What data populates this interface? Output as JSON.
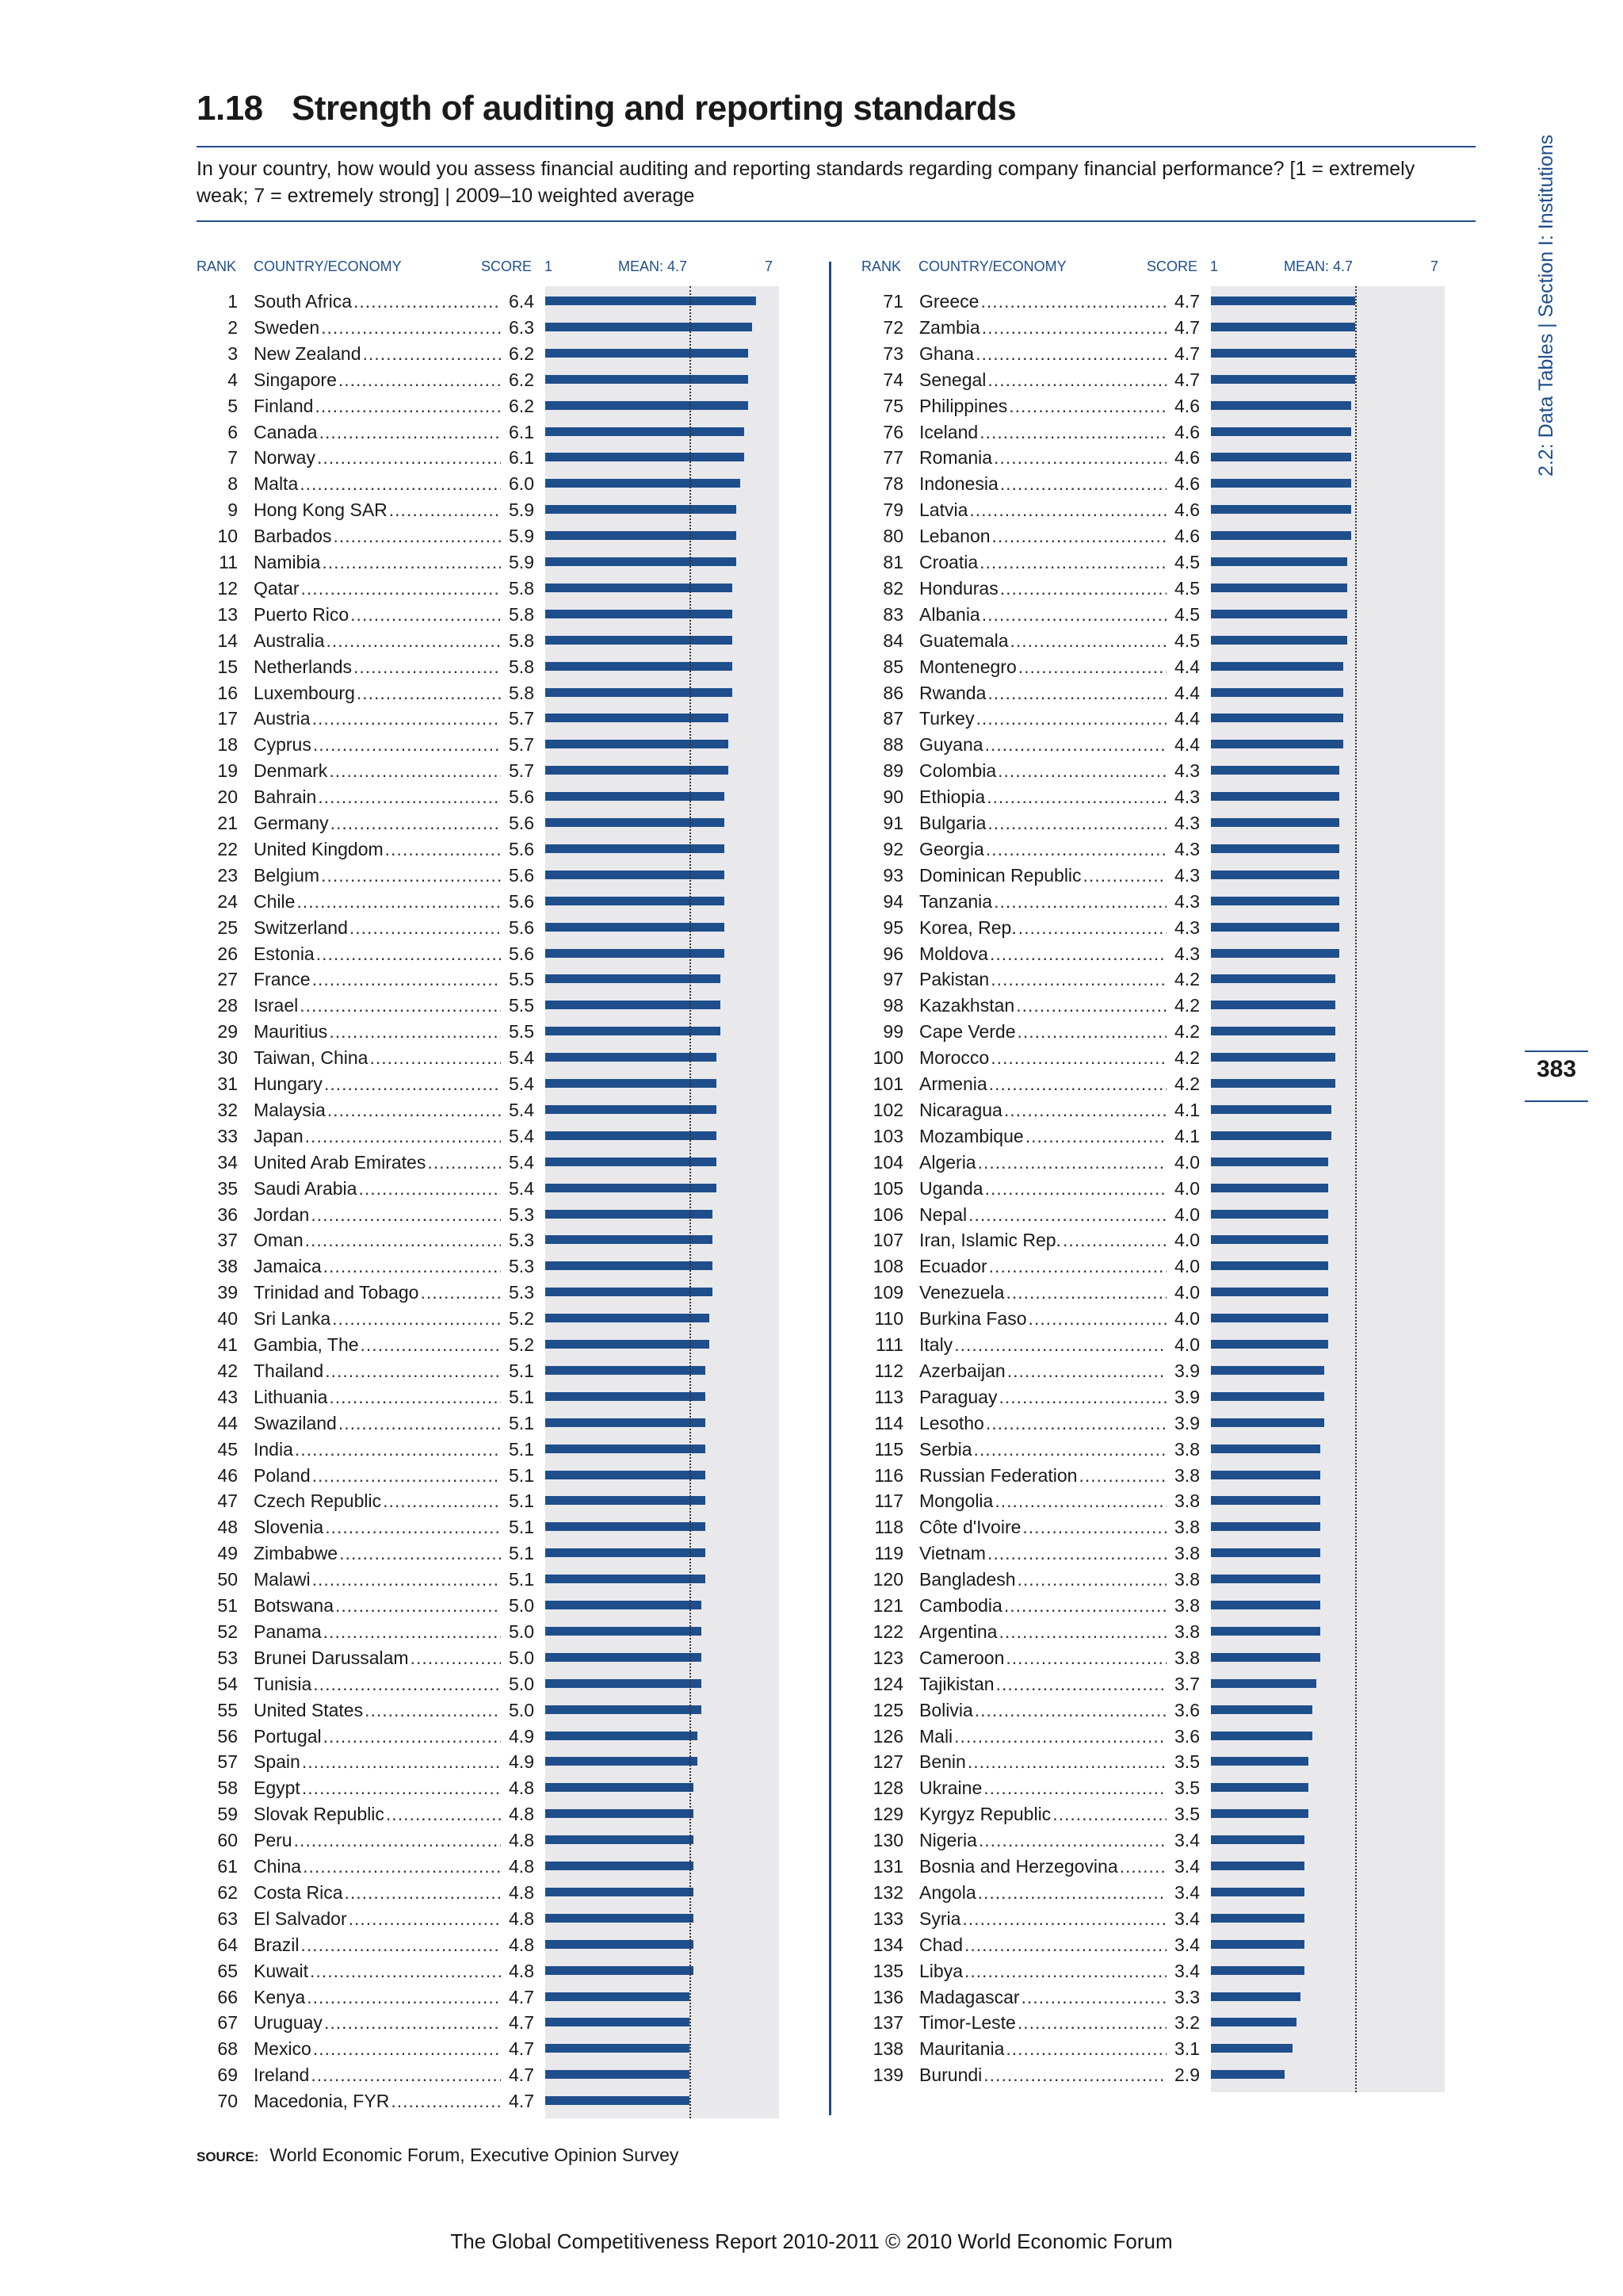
{
  "header": {
    "number": "1.18",
    "title": "Strength of auditing and reporting standards",
    "question": "In your country, how would you assess financial auditing and reporting standards regarding company financial performance? [1 = extremely weak; 7 = extremely strong] | 2009–10 weighted average"
  },
  "sidebar": {
    "section": "2.2: Data Tables | Section I: Institutions",
    "page_number": "383"
  },
  "columns": {
    "rank": "RANK",
    "country": "COUNTRY/ECONOMY",
    "score": "SCORE",
    "axis_min": "1",
    "mean": "MEAN: 4.7",
    "axis_max": "7"
  },
  "source": {
    "label": "SOURCE:",
    "text": "World Economic Forum, Executive Opinion Survey"
  },
  "footer": "The Global Competitiveness Report 2010-2011 © 2010 World Economic Forum",
  "chart_data": {
    "type": "bar",
    "orientation": "horizontal",
    "xlim": [
      1,
      7
    ],
    "mean": 4.7,
    "colors": {
      "bar": "#1f4e8c",
      "track": "#e9e9ec"
    },
    "rows": [
      {
        "rank": 1,
        "country": "South Africa",
        "score": 6.4
      },
      {
        "rank": 2,
        "country": "Sweden",
        "score": 6.3
      },
      {
        "rank": 3,
        "country": "New Zealand",
        "score": 6.2
      },
      {
        "rank": 4,
        "country": "Singapore",
        "score": 6.2
      },
      {
        "rank": 5,
        "country": "Finland",
        "score": 6.2
      },
      {
        "rank": 6,
        "country": "Canada",
        "score": 6.1
      },
      {
        "rank": 7,
        "country": "Norway",
        "score": 6.1
      },
      {
        "rank": 8,
        "country": "Malta",
        "score": 6.0
      },
      {
        "rank": 9,
        "country": "Hong Kong SAR",
        "score": 5.9
      },
      {
        "rank": 10,
        "country": "Barbados",
        "score": 5.9
      },
      {
        "rank": 11,
        "country": "Namibia",
        "score": 5.9
      },
      {
        "rank": 12,
        "country": "Qatar",
        "score": 5.8
      },
      {
        "rank": 13,
        "country": "Puerto Rico",
        "score": 5.8
      },
      {
        "rank": 14,
        "country": "Australia",
        "score": 5.8
      },
      {
        "rank": 15,
        "country": "Netherlands",
        "score": 5.8
      },
      {
        "rank": 16,
        "country": "Luxembourg",
        "score": 5.8
      },
      {
        "rank": 17,
        "country": "Austria",
        "score": 5.7
      },
      {
        "rank": 18,
        "country": "Cyprus",
        "score": 5.7
      },
      {
        "rank": 19,
        "country": "Denmark",
        "score": 5.7
      },
      {
        "rank": 20,
        "country": "Bahrain",
        "score": 5.6
      },
      {
        "rank": 21,
        "country": "Germany",
        "score": 5.6
      },
      {
        "rank": 22,
        "country": "United Kingdom",
        "score": 5.6
      },
      {
        "rank": 23,
        "country": "Belgium",
        "score": 5.6
      },
      {
        "rank": 24,
        "country": "Chile",
        "score": 5.6
      },
      {
        "rank": 25,
        "country": "Switzerland",
        "score": 5.6
      },
      {
        "rank": 26,
        "country": "Estonia",
        "score": 5.6
      },
      {
        "rank": 27,
        "country": "France",
        "score": 5.5
      },
      {
        "rank": 28,
        "country": "Israel",
        "score": 5.5
      },
      {
        "rank": 29,
        "country": "Mauritius",
        "score": 5.5
      },
      {
        "rank": 30,
        "country": "Taiwan, China",
        "score": 5.4
      },
      {
        "rank": 31,
        "country": "Hungary",
        "score": 5.4
      },
      {
        "rank": 32,
        "country": "Malaysia",
        "score": 5.4
      },
      {
        "rank": 33,
        "country": "Japan",
        "score": 5.4
      },
      {
        "rank": 34,
        "country": "United Arab Emirates",
        "score": 5.4
      },
      {
        "rank": 35,
        "country": "Saudi Arabia",
        "score": 5.4
      },
      {
        "rank": 36,
        "country": "Jordan",
        "score": 5.3
      },
      {
        "rank": 37,
        "country": "Oman",
        "score": 5.3
      },
      {
        "rank": 38,
        "country": "Jamaica",
        "score": 5.3
      },
      {
        "rank": 39,
        "country": "Trinidad and Tobago",
        "score": 5.3
      },
      {
        "rank": 40,
        "country": "Sri Lanka",
        "score": 5.2
      },
      {
        "rank": 41,
        "country": "Gambia, The",
        "score": 5.2
      },
      {
        "rank": 42,
        "country": "Thailand",
        "score": 5.1
      },
      {
        "rank": 43,
        "country": "Lithuania",
        "score": 5.1
      },
      {
        "rank": 44,
        "country": "Swaziland",
        "score": 5.1
      },
      {
        "rank": 45,
        "country": "India",
        "score": 5.1
      },
      {
        "rank": 46,
        "country": "Poland",
        "score": 5.1
      },
      {
        "rank": 47,
        "country": "Czech Republic",
        "score": 5.1
      },
      {
        "rank": 48,
        "country": "Slovenia",
        "score": 5.1
      },
      {
        "rank": 49,
        "country": "Zimbabwe",
        "score": 5.1
      },
      {
        "rank": 50,
        "country": "Malawi",
        "score": 5.1
      },
      {
        "rank": 51,
        "country": "Botswana",
        "score": 5.0
      },
      {
        "rank": 52,
        "country": "Panama",
        "score": 5.0
      },
      {
        "rank": 53,
        "country": "Brunei Darussalam",
        "score": 5.0
      },
      {
        "rank": 54,
        "country": "Tunisia",
        "score": 5.0
      },
      {
        "rank": 55,
        "country": "United States",
        "score": 5.0
      },
      {
        "rank": 56,
        "country": "Portugal",
        "score": 4.9
      },
      {
        "rank": 57,
        "country": "Spain",
        "score": 4.9
      },
      {
        "rank": 58,
        "country": "Egypt",
        "score": 4.8
      },
      {
        "rank": 59,
        "country": "Slovak Republic",
        "score": 4.8
      },
      {
        "rank": 60,
        "country": "Peru",
        "score": 4.8
      },
      {
        "rank": 61,
        "country": "China",
        "score": 4.8
      },
      {
        "rank": 62,
        "country": "Costa Rica",
        "score": 4.8
      },
      {
        "rank": 63,
        "country": "El Salvador",
        "score": 4.8
      },
      {
        "rank": 64,
        "country": "Brazil",
        "score": 4.8
      },
      {
        "rank": 65,
        "country": "Kuwait",
        "score": 4.8
      },
      {
        "rank": 66,
        "country": "Kenya",
        "score": 4.7
      },
      {
        "rank": 67,
        "country": "Uruguay",
        "score": 4.7
      },
      {
        "rank": 68,
        "country": "Mexico",
        "score": 4.7
      },
      {
        "rank": 69,
        "country": "Ireland",
        "score": 4.7
      },
      {
        "rank": 70,
        "country": "Macedonia, FYR",
        "score": 4.7
      },
      {
        "rank": 71,
        "country": "Greece",
        "score": 4.7
      },
      {
        "rank": 72,
        "country": "Zambia",
        "score": 4.7
      },
      {
        "rank": 73,
        "country": "Ghana",
        "score": 4.7
      },
      {
        "rank": 74,
        "country": "Senegal",
        "score": 4.7
      },
      {
        "rank": 75,
        "country": "Philippines",
        "score": 4.6
      },
      {
        "rank": 76,
        "country": "Iceland",
        "score": 4.6
      },
      {
        "rank": 77,
        "country": "Romania",
        "score": 4.6
      },
      {
        "rank": 78,
        "country": "Indonesia",
        "score": 4.6
      },
      {
        "rank": 79,
        "country": "Latvia",
        "score": 4.6
      },
      {
        "rank": 80,
        "country": "Lebanon",
        "score": 4.6
      },
      {
        "rank": 81,
        "country": "Croatia",
        "score": 4.5
      },
      {
        "rank": 82,
        "country": "Honduras",
        "score": 4.5
      },
      {
        "rank": 83,
        "country": "Albania",
        "score": 4.5
      },
      {
        "rank": 84,
        "country": "Guatemala",
        "score": 4.5
      },
      {
        "rank": 85,
        "country": "Montenegro",
        "score": 4.4
      },
      {
        "rank": 86,
        "country": "Rwanda",
        "score": 4.4
      },
      {
        "rank": 87,
        "country": "Turkey",
        "score": 4.4
      },
      {
        "rank": 88,
        "country": "Guyana",
        "score": 4.4
      },
      {
        "rank": 89,
        "country": "Colombia",
        "score": 4.3
      },
      {
        "rank": 90,
        "country": "Ethiopia",
        "score": 4.3
      },
      {
        "rank": 91,
        "country": "Bulgaria",
        "score": 4.3
      },
      {
        "rank": 92,
        "country": "Georgia",
        "score": 4.3
      },
      {
        "rank": 93,
        "country": "Dominican Republic",
        "score": 4.3
      },
      {
        "rank": 94,
        "country": "Tanzania",
        "score": 4.3
      },
      {
        "rank": 95,
        "country": "Korea, Rep.",
        "score": 4.3
      },
      {
        "rank": 96,
        "country": "Moldova",
        "score": 4.3
      },
      {
        "rank": 97,
        "country": "Pakistan",
        "score": 4.2
      },
      {
        "rank": 98,
        "country": "Kazakhstan",
        "score": 4.2
      },
      {
        "rank": 99,
        "country": "Cape Verde",
        "score": 4.2
      },
      {
        "rank": 100,
        "country": "Morocco",
        "score": 4.2
      },
      {
        "rank": 101,
        "country": "Armenia",
        "score": 4.2
      },
      {
        "rank": 102,
        "country": "Nicaragua",
        "score": 4.1
      },
      {
        "rank": 103,
        "country": "Mozambique",
        "score": 4.1
      },
      {
        "rank": 104,
        "country": "Algeria",
        "score": 4.0
      },
      {
        "rank": 105,
        "country": "Uganda",
        "score": 4.0
      },
      {
        "rank": 106,
        "country": "Nepal",
        "score": 4.0
      },
      {
        "rank": 107,
        "country": "Iran, Islamic Rep.",
        "score": 4.0
      },
      {
        "rank": 108,
        "country": "Ecuador",
        "score": 4.0
      },
      {
        "rank": 109,
        "country": "Venezuela",
        "score": 4.0
      },
      {
        "rank": 110,
        "country": "Burkina Faso",
        "score": 4.0
      },
      {
        "rank": 111,
        "country": "Italy",
        "score": 4.0
      },
      {
        "rank": 112,
        "country": "Azerbaijan",
        "score": 3.9
      },
      {
        "rank": 113,
        "country": "Paraguay",
        "score": 3.9
      },
      {
        "rank": 114,
        "country": "Lesotho",
        "score": 3.9
      },
      {
        "rank": 115,
        "country": "Serbia",
        "score": 3.8
      },
      {
        "rank": 116,
        "country": "Russian Federation",
        "score": 3.8
      },
      {
        "rank": 117,
        "country": "Mongolia",
        "score": 3.8
      },
      {
        "rank": 118,
        "country": "Côte d'Ivoire",
        "score": 3.8
      },
      {
        "rank": 119,
        "country": "Vietnam",
        "score": 3.8
      },
      {
        "rank": 120,
        "country": "Bangladesh",
        "score": 3.8
      },
      {
        "rank": 121,
        "country": "Cambodia",
        "score": 3.8
      },
      {
        "rank": 122,
        "country": "Argentina",
        "score": 3.8
      },
      {
        "rank": 123,
        "country": "Cameroon",
        "score": 3.8
      },
      {
        "rank": 124,
        "country": "Tajikistan",
        "score": 3.7
      },
      {
        "rank": 125,
        "country": "Bolivia",
        "score": 3.6
      },
      {
        "rank": 126,
        "country": "Mali",
        "score": 3.6
      },
      {
        "rank": 127,
        "country": "Benin",
        "score": 3.5
      },
      {
        "rank": 128,
        "country": "Ukraine",
        "score": 3.5
      },
      {
        "rank": 129,
        "country": "Kyrgyz Republic",
        "score": 3.5
      },
      {
        "rank": 130,
        "country": "Nigeria",
        "score": 3.4
      },
      {
        "rank": 131,
        "country": "Bosnia and Herzegovina",
        "score": 3.4
      },
      {
        "rank": 132,
        "country": "Angola",
        "score": 3.4
      },
      {
        "rank": 133,
        "country": "Syria",
        "score": 3.4
      },
      {
        "rank": 134,
        "country": "Chad",
        "score": 3.4
      },
      {
        "rank": 135,
        "country": "Libya",
        "score": 3.4
      },
      {
        "rank": 136,
        "country": "Madagascar",
        "score": 3.3
      },
      {
        "rank": 137,
        "country": "Timor-Leste",
        "score": 3.2
      },
      {
        "rank": 138,
        "country": "Mauritania",
        "score": 3.1
      },
      {
        "rank": 139,
        "country": "Burundi",
        "score": 2.9
      }
    ]
  }
}
